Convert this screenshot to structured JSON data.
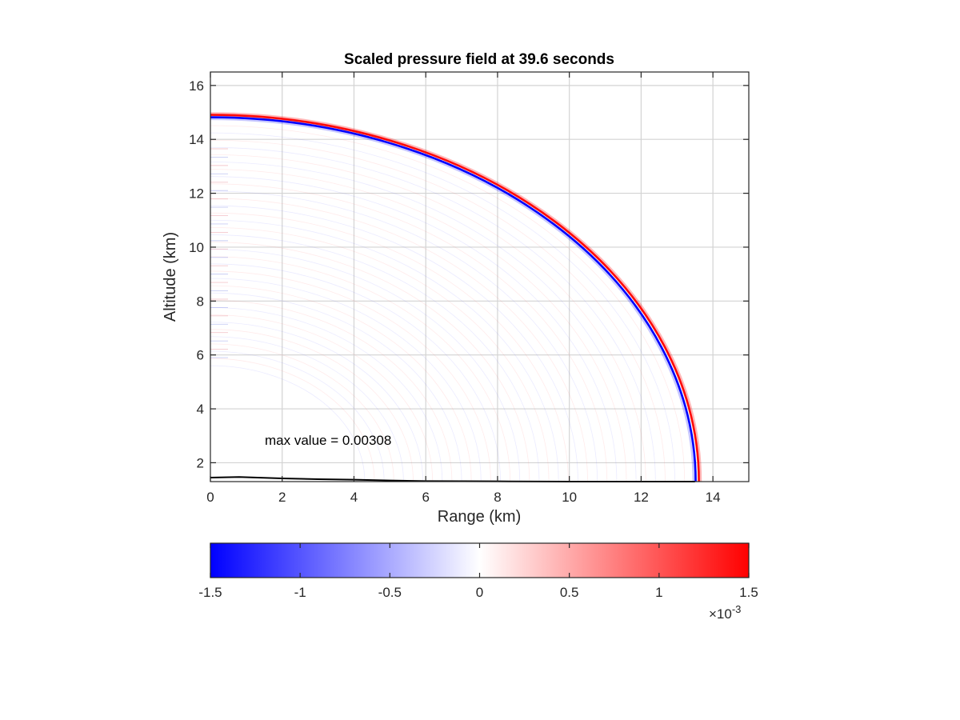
{
  "chart_data": {
    "type": "heatmap",
    "title": "Scaled pressure field at 39.6 seconds",
    "xlabel": "Range (km)",
    "ylabel": "Altitude (km)",
    "xlim": [
      0,
      15
    ],
    "ylim": [
      1.3,
      16.5
    ],
    "xticks": [
      "0",
      "2",
      "4",
      "6",
      "8",
      "10",
      "12",
      "14"
    ],
    "yticks": [
      "2",
      "4",
      "6",
      "8",
      "10",
      "12",
      "14",
      "16"
    ],
    "grid": true,
    "annotation": "max value = 0.00308",
    "wavefront": {
      "center": [
        0,
        1.3
      ],
      "radius_km": 13.55
    },
    "ground_profile": {
      "x": [
        0,
        0.8,
        2,
        3,
        4,
        5,
        6,
        8,
        10,
        12,
        13.5
      ],
      "y": [
        1.45,
        1.47,
        1.42,
        1.39,
        1.37,
        1.34,
        1.32,
        1.31,
        1.3,
        1.3,
        1.3
      ]
    },
    "colorbar": {
      "range": [
        -1.5,
        1.5
      ],
      "ticks": [
        "-1.5",
        "-1",
        "-0.5",
        "0",
        "0.5",
        "1",
        "1.5"
      ],
      "exponent_label": "×10",
      "exponent": "-3",
      "colors": {
        "low": "#0000ff",
        "mid": "#ffffff",
        "high": "#ff0000"
      }
    }
  }
}
